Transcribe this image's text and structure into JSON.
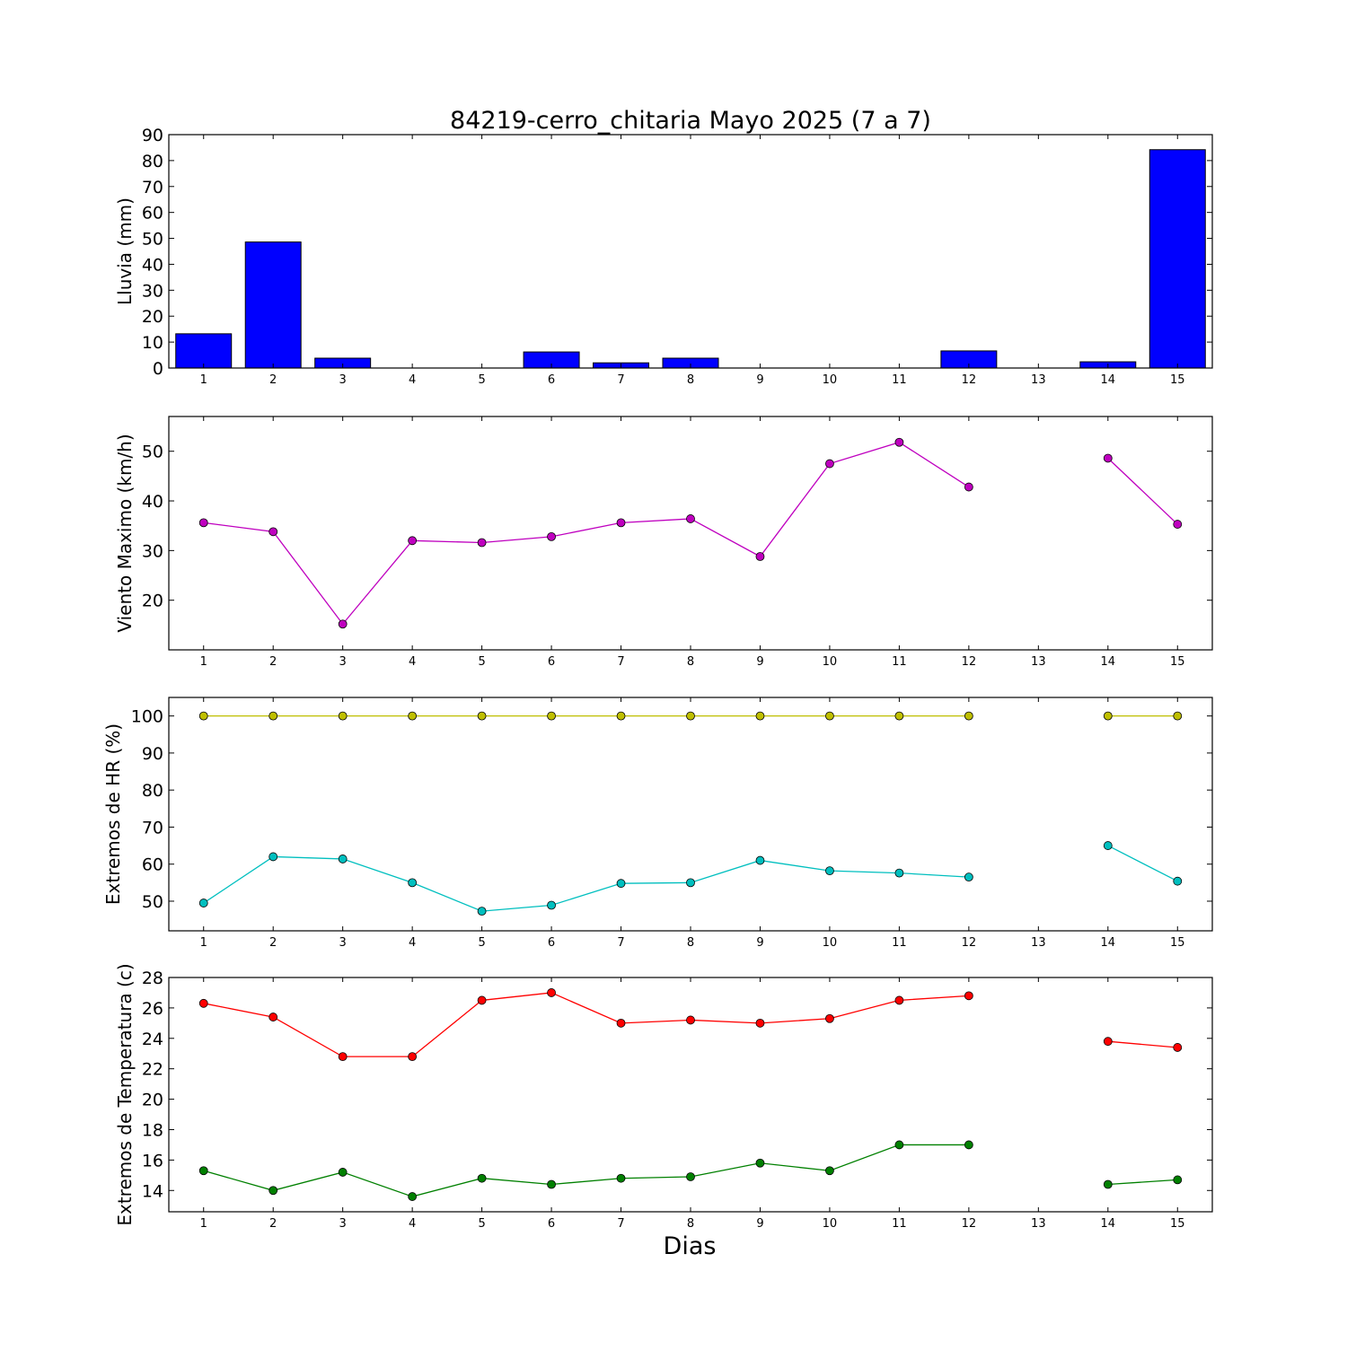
{
  "figure": {
    "title": "84219-cerro_chitaria Mayo 2025  (7 a 7)",
    "xlabel": "Dias",
    "xlim": [
      0.5,
      15.5
    ]
  },
  "chart_data": [
    {
      "type": "bar",
      "ylabel": "Lluvia (mm)",
      "x": [
        1,
        2,
        3,
        4,
        5,
        6,
        7,
        8,
        9,
        10,
        11,
        12,
        13,
        14,
        15
      ],
      "values": [
        13.2,
        48.6,
        3.8,
        0,
        0,
        6.2,
        2.0,
        3.8,
        0,
        0,
        0,
        6.6,
        0,
        2.4,
        84.2
      ],
      "ylim": [
        0,
        90
      ],
      "yticks": [
        0,
        10,
        20,
        30,
        40,
        50,
        60,
        70,
        80,
        90
      ],
      "xticks": [
        1,
        2,
        3,
        4,
        5,
        6,
        7,
        8,
        9,
        10,
        11,
        12,
        13,
        14,
        15
      ],
      "color": "#0000ff",
      "grid": false
    },
    {
      "type": "line",
      "ylabel": "Viento Maximo (km/h)",
      "x": [
        1,
        2,
        3,
        4,
        5,
        6,
        7,
        8,
        9,
        10,
        11,
        12,
        13,
        14,
        15
      ],
      "series": [
        {
          "values": [
            35.6,
            33.8,
            15.2,
            32.0,
            31.6,
            32.8,
            35.6,
            36.4,
            28.8,
            47.5,
            51.8,
            42.8,
            null,
            48.6,
            35.3
          ],
          "color": "#bf00bf"
        }
      ],
      "ylim": [
        10,
        57
      ],
      "yticks": [
        20,
        30,
        40,
        50
      ],
      "xticks": [
        1,
        2,
        3,
        4,
        5,
        6,
        7,
        8,
        9,
        10,
        11,
        12,
        13,
        14,
        15
      ],
      "grid": false
    },
    {
      "type": "line",
      "ylabel": "Extremos de HR (%)",
      "x": [
        1,
        2,
        3,
        4,
        5,
        6,
        7,
        8,
        9,
        10,
        11,
        12,
        13,
        14,
        15
      ],
      "series": [
        {
          "values": [
            100,
            100,
            100,
            100,
            100,
            100,
            100,
            100,
            100,
            100,
            100,
            100,
            null,
            100,
            100
          ],
          "color": "#bfbf00"
        },
        {
          "values": [
            49.5,
            62.0,
            61.4,
            55.0,
            47.3,
            48.9,
            54.8,
            55.0,
            61.0,
            58.2,
            57.6,
            56.5,
            null,
            65.0,
            55.4
          ],
          "color": "#00bfbf"
        }
      ],
      "ylim": [
        42,
        105
      ],
      "yticks": [
        50,
        60,
        70,
        80,
        90,
        100
      ],
      "xticks": [
        1,
        2,
        3,
        4,
        5,
        6,
        7,
        8,
        9,
        10,
        11,
        12,
        13,
        14,
        15
      ],
      "grid": false
    },
    {
      "type": "line",
      "ylabel": "Extremos de Temperatura (c)",
      "x": [
        1,
        2,
        3,
        4,
        5,
        6,
        7,
        8,
        9,
        10,
        11,
        12,
        13,
        14,
        15
      ],
      "series": [
        {
          "values": [
            26.3,
            25.4,
            22.8,
            22.8,
            26.5,
            27.0,
            25.0,
            25.2,
            25.0,
            25.3,
            26.5,
            26.8,
            null,
            23.8,
            23.4
          ],
          "color": "#ff0000"
        },
        {
          "values": [
            15.3,
            14.0,
            15.2,
            13.6,
            14.8,
            14.4,
            14.8,
            14.9,
            15.8,
            15.3,
            17.0,
            17.0,
            null,
            14.4,
            14.7
          ],
          "color": "#008000"
        }
      ],
      "ylim": [
        12.6,
        28
      ],
      "yticks": [
        14,
        16,
        18,
        20,
        22,
        24,
        26,
        28
      ],
      "xticks": [
        1,
        2,
        3,
        4,
        5,
        6,
        7,
        8,
        9,
        10,
        11,
        12,
        13,
        14,
        15
      ],
      "grid": false
    }
  ]
}
